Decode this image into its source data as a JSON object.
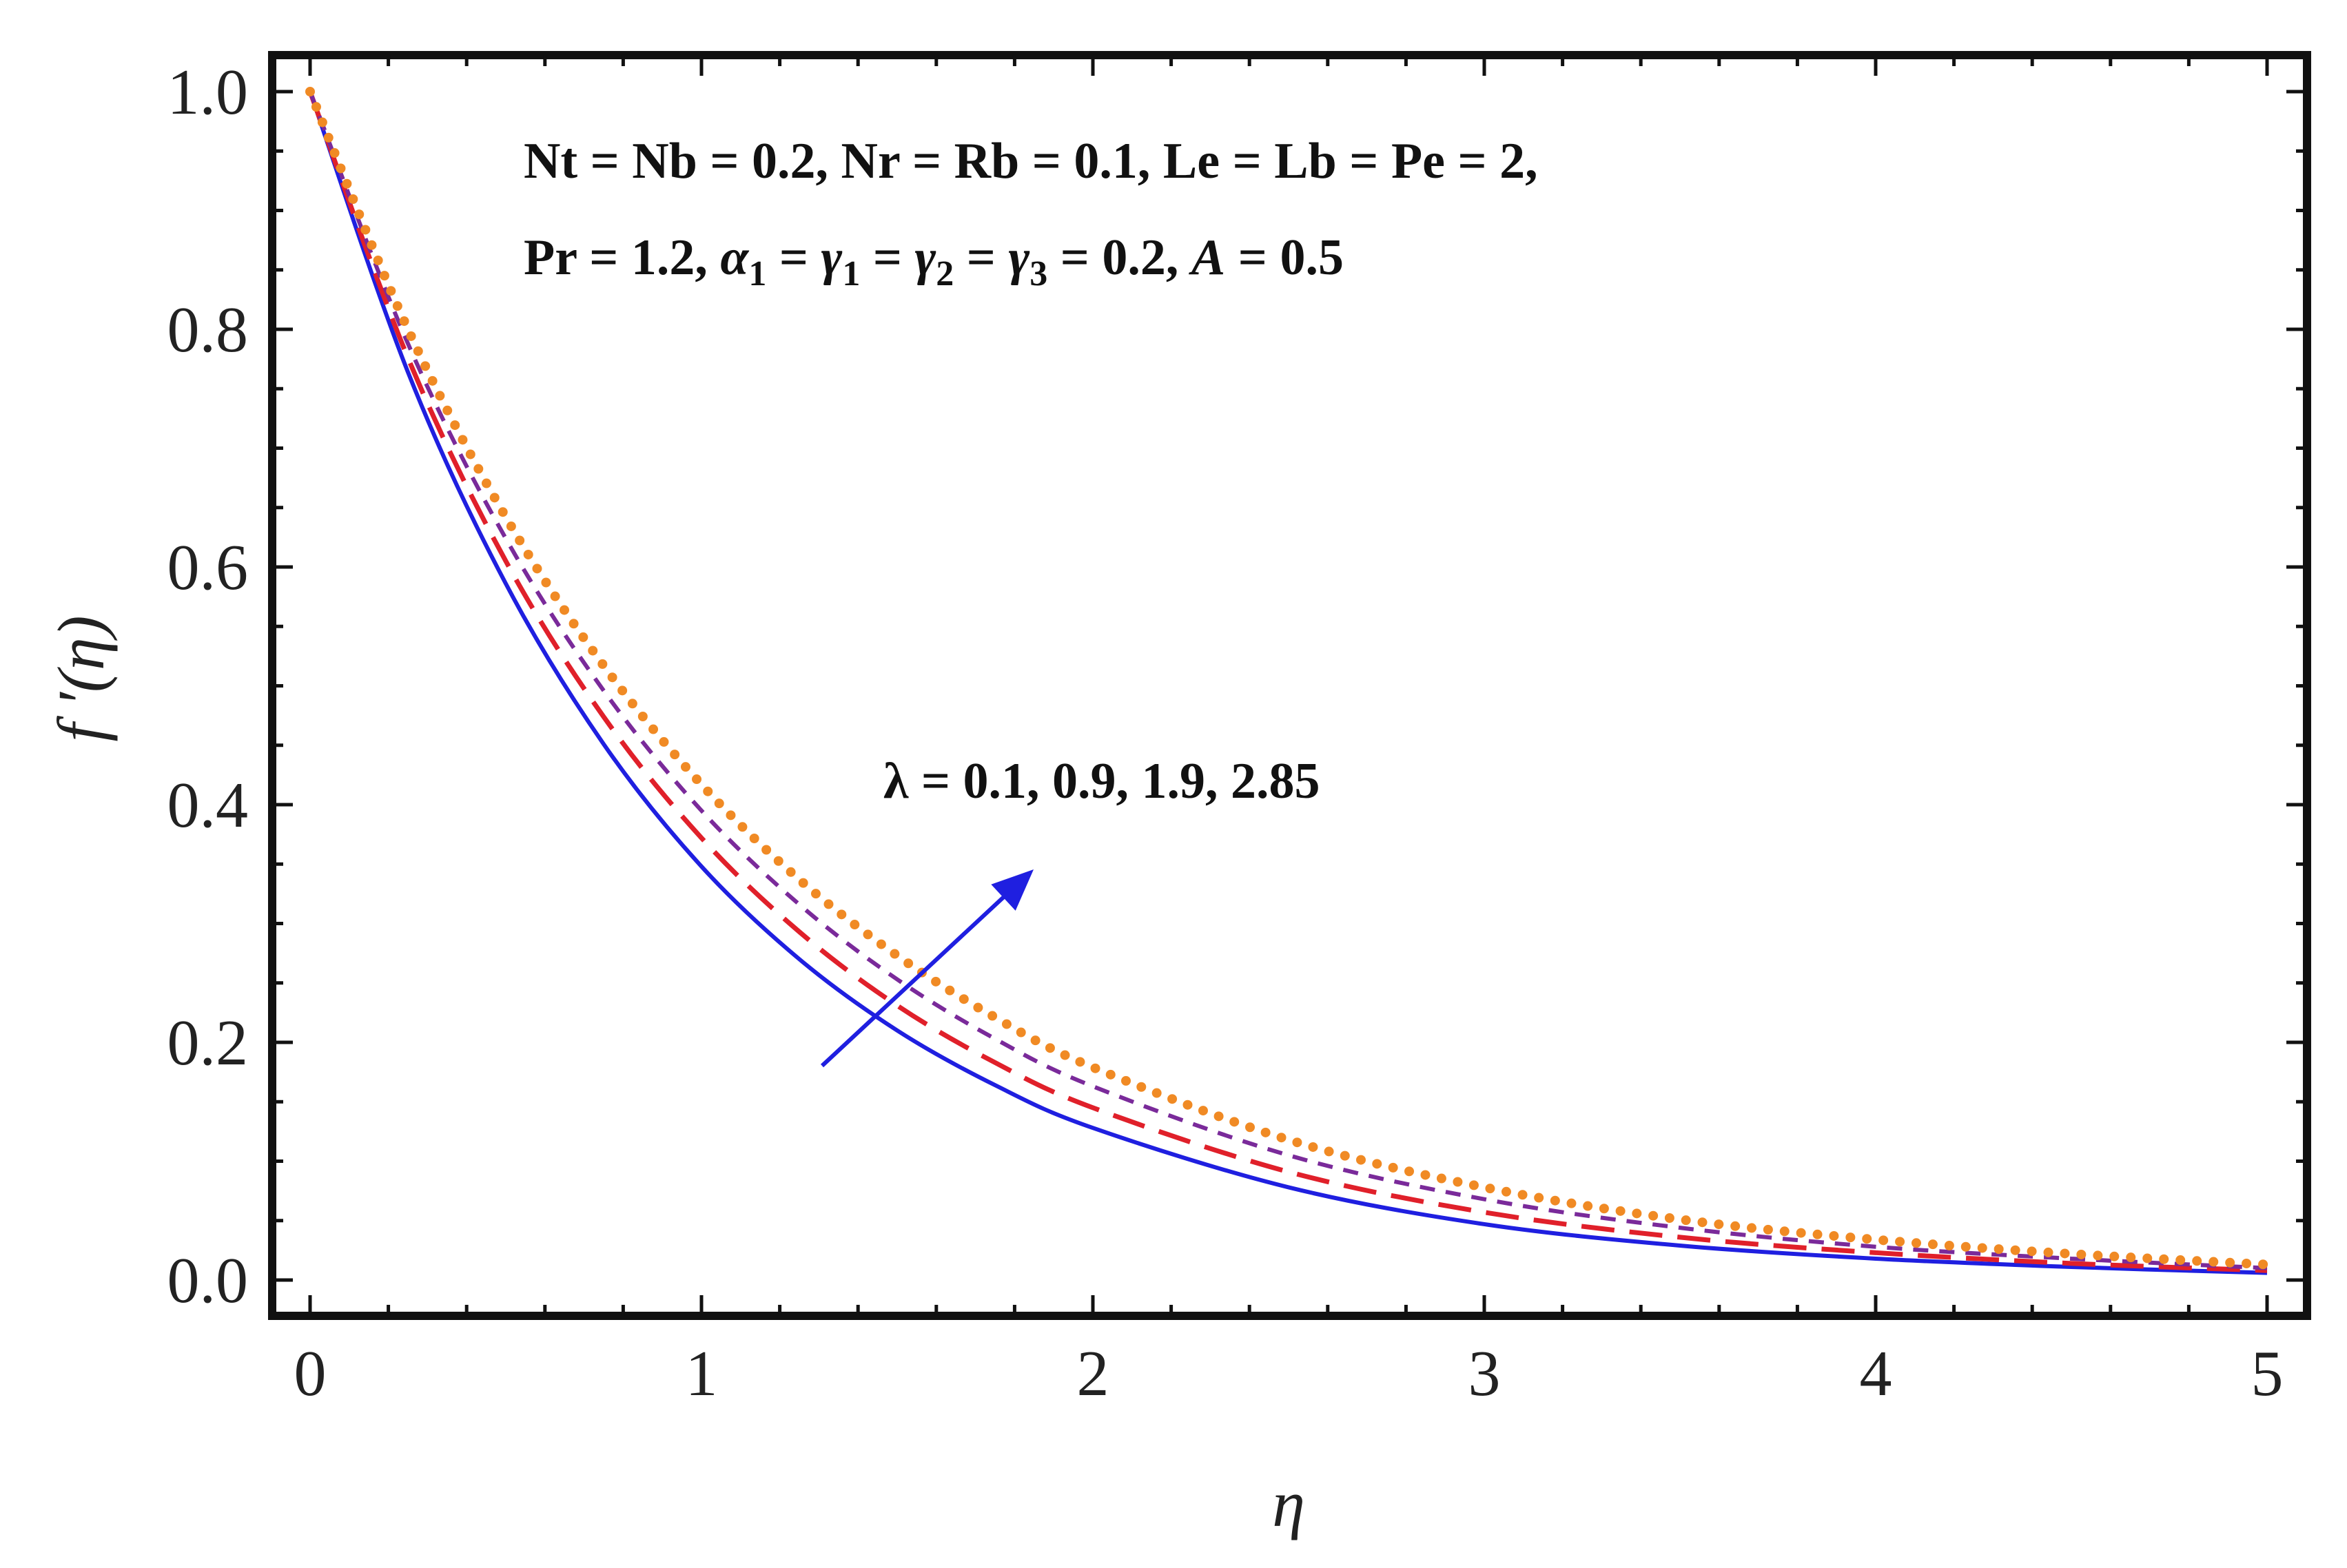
{
  "chart_data": {
    "type": "line",
    "title": "",
    "xlabel": "η",
    "ylabel": "f ′(η)",
    "xlim": [
      0,
      5
    ],
    "ylim": [
      0,
      1
    ],
    "grid": false,
    "x_ticks": [
      "0",
      "1",
      "2",
      "3",
      "4",
      "5"
    ],
    "y_ticks": [
      "0.0",
      "0.2",
      "0.4",
      "0.6",
      "0.8",
      "1.0"
    ],
    "x": [
      0,
      0.25,
      0.5,
      0.75,
      1.0,
      1.25,
      1.5,
      1.75,
      2.0,
      2.5,
      3.0,
      3.5,
      4.0,
      4.5,
      5.0
    ],
    "series": [
      {
        "values": [
          1.0,
          0.764,
          0.586,
          0.451,
          0.348,
          0.27,
          0.21,
          0.164,
          0.128,
          0.078,
          0.047,
          0.029,
          0.018,
          0.011,
          0.006
        ],
        "color": "#1f1fe0",
        "style": "solid"
      },
      {
        "values": [
          1.0,
          0.776,
          0.605,
          0.474,
          0.372,
          0.293,
          0.231,
          0.183,
          0.145,
          0.091,
          0.057,
          0.036,
          0.023,
          0.014,
          0.008
        ],
        "color": "#e0202a",
        "style": "dashed"
      },
      {
        "values": [
          1.0,
          0.788,
          0.624,
          0.496,
          0.395,
          0.316,
          0.253,
          0.203,
          0.163,
          0.105,
          0.068,
          0.044,
          0.028,
          0.018,
          0.01
        ],
        "color": "#7a2a9a",
        "style": "dotted-dash"
      },
      {
        "values": [
          1.0,
          0.8,
          0.642,
          0.517,
          0.417,
          0.337,
          0.273,
          0.221,
          0.179,
          0.118,
          0.078,
          0.051,
          0.034,
          0.022,
          0.013
        ],
        "color": "#f08a24",
        "style": "dotted"
      }
    ],
    "annotations": {
      "params_line1": "Nt = Nb = 0.2, Nr =  Rb = 0.1, Le = Lb = Pe = 2,",
      "params_line2_a": "Pr = 1.2, ",
      "params_line2_b": "α",
      "params_line2_b_sub": "1",
      "params_line2_c": " = ",
      "params_line2_d": "γ",
      "params_line2_d_sub": "1",
      "params_line2_e": " = ",
      "params_line2_f": "γ",
      "params_line2_f_sub": "2",
      "params_line2_g": " = ",
      "params_line2_h": "γ",
      "params_line2_h_sub": "3",
      "params_line2_i": " = 0.2,  ",
      "params_line2_j": "A",
      "params_line2_k": " = 0.5",
      "lambda_label": "λ = 0.1, 0.9, 1.9, 2.85"
    },
    "arrow_color": "#1f1fe0"
  }
}
